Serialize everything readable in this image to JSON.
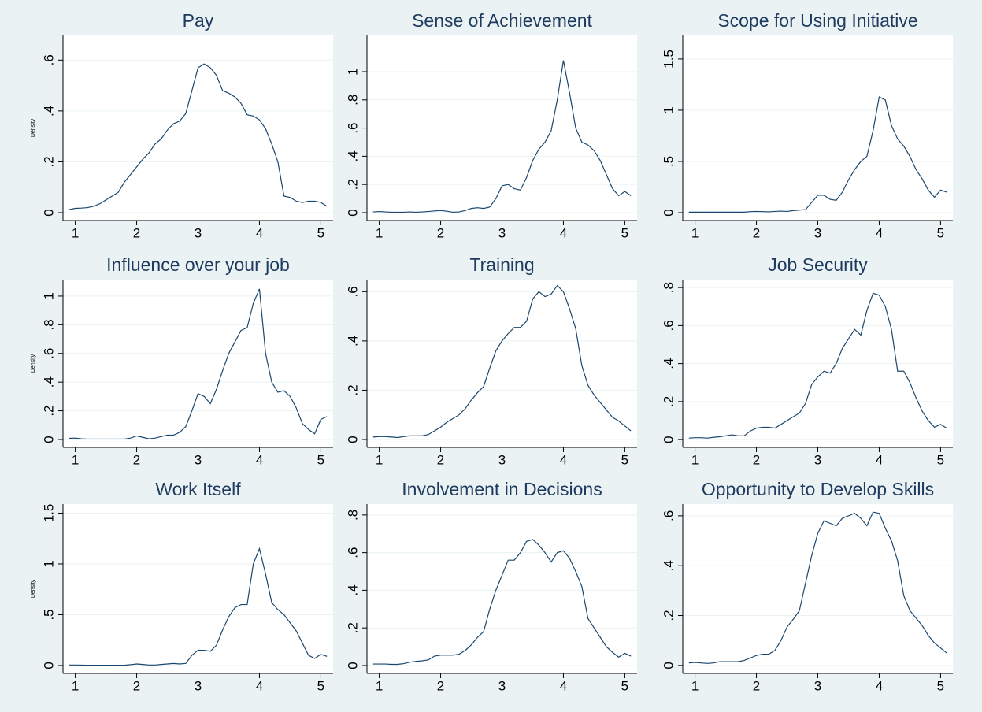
{
  "chart_data": [
    {
      "type": "line",
      "title": "Pay",
      "ytitle": "Density",
      "color": "#1a476f",
      "grid": true,
      "x": [
        0.9,
        1,
        1.1,
        1.2,
        1.3,
        1.4,
        1.5,
        1.6,
        1.7,
        1.8,
        1.9,
        2,
        2.1,
        2.2,
        2.3,
        2.4,
        2.5,
        2.6,
        2.7,
        2.8,
        2.9,
        3,
        3.1,
        3.2,
        3.3,
        3.4,
        3.5,
        3.6,
        3.7,
        3.8,
        3.9,
        4,
        4.1,
        4.2,
        4.3,
        4.4,
        4.5,
        4.6,
        4.7,
        4.8,
        4.9,
        5,
        5.1
      ],
      "values": [
        0.012,
        0.017,
        0.018,
        0.02,
        0.025,
        0.035,
        0.05,
        0.065,
        0.08,
        0.12,
        0.15,
        0.18,
        0.21,
        0.235,
        0.27,
        0.29,
        0.325,
        0.35,
        0.36,
        0.39,
        0.48,
        0.57,
        0.585,
        0.57,
        0.54,
        0.48,
        0.47,
        0.455,
        0.43,
        0.385,
        0.38,
        0.365,
        0.33,
        0.27,
        0.2,
        0.065,
        0.06,
        0.045,
        0.04,
        0.045,
        0.045,
        0.04,
        0.025
      ],
      "xlim": [
        0.8,
        5.2
      ],
      "xticks": [
        1,
        2,
        3,
        4,
        5
      ],
      "ylim": [
        -0.031,
        0.697
      ],
      "yticks": [
        0,
        {
          "value": 0.2,
          "label": ".2"
        },
        {
          "value": 0.4,
          "label": ".4"
        },
        {
          "value": 0.6,
          "label": ".6"
        }
      ]
    },
    {
      "type": "line",
      "title": "Sense of Achievement",
      "color": "#1a476f",
      "grid": true,
      "x": [
        0.9,
        1,
        1.1,
        1.2,
        1.3,
        1.4,
        1.5,
        1.6,
        1.7,
        1.8,
        1.9,
        2,
        2.1,
        2.2,
        2.3,
        2.4,
        2.5,
        2.6,
        2.7,
        2.8,
        2.9,
        3,
        3.1,
        3.2,
        3.3,
        3.4,
        3.5,
        3.6,
        3.7,
        3.8,
        3.9,
        4,
        4.1,
        4.2,
        4.3,
        4.4,
        4.5,
        4.6,
        4.7,
        4.8,
        4.9,
        5,
        5.1
      ],
      "values": [
        0.005,
        0.008,
        0.005,
        0.003,
        0.003,
        0.003,
        0.005,
        0.003,
        0.005,
        0.008,
        0.012,
        0.015,
        0.01,
        0.003,
        0.005,
        0.015,
        0.03,
        0.035,
        0.03,
        0.04,
        0.1,
        0.19,
        0.2,
        0.17,
        0.16,
        0.25,
        0.37,
        0.45,
        0.5,
        0.58,
        0.8,
        1.08,
        0.85,
        0.6,
        0.5,
        0.48,
        0.44,
        0.37,
        0.27,
        0.17,
        0.12,
        0.15,
        0.12
      ],
      "xlim": [
        0.8,
        5.2
      ],
      "xticks": [
        1,
        2,
        3,
        4,
        5
      ],
      "ylim": [
        -0.056,
        1.257
      ],
      "yticks": [
        0,
        {
          "value": 0.2,
          "label": ".2"
        },
        {
          "value": 0.4,
          "label": ".4"
        },
        {
          "value": 0.6,
          "label": ".6"
        },
        {
          "value": 0.8,
          "label": ".8"
        },
        1
      ]
    },
    {
      "type": "line",
      "title": "Scope for Using Initiative",
      "color": "#1a476f",
      "grid": true,
      "x": [
        0.9,
        1,
        1.1,
        1.2,
        1.3,
        1.4,
        1.5,
        1.6,
        1.7,
        1.8,
        1.9,
        2,
        2.1,
        2.2,
        2.3,
        2.4,
        2.5,
        2.6,
        2.7,
        2.8,
        2.9,
        3,
        3.1,
        3.2,
        3.3,
        3.4,
        3.5,
        3.6,
        3.7,
        3.8,
        3.9,
        4,
        4.1,
        4.2,
        4.3,
        4.4,
        4.5,
        4.6,
        4.7,
        4.8,
        4.9,
        5,
        5.1
      ],
      "values": [
        0.005,
        0.005,
        0.005,
        0.005,
        0.005,
        0.005,
        0.005,
        0.005,
        0.005,
        0.005,
        0.01,
        0.012,
        0.01,
        0.008,
        0.012,
        0.015,
        0.012,
        0.02,
        0.025,
        0.03,
        0.1,
        0.17,
        0.17,
        0.13,
        0.12,
        0.2,
        0.32,
        0.42,
        0.5,
        0.55,
        0.8,
        1.13,
        1.1,
        0.85,
        0.72,
        0.65,
        0.55,
        0.42,
        0.33,
        0.22,
        0.15,
        0.22,
        0.2
      ],
      "xlim": [
        0.8,
        5.2
      ],
      "xticks": [
        1,
        2,
        3,
        4,
        5
      ],
      "ylim": [
        -0.077,
        1.73
      ],
      "yticks": [
        0,
        {
          "value": 0.5,
          "label": ".5"
        },
        1,
        1.5
      ]
    },
    {
      "type": "line",
      "title": "Influence over your job",
      "ytitle": "Density",
      "color": "#1a476f",
      "grid": true,
      "x": [
        0.9,
        1,
        1.1,
        1.2,
        1.3,
        1.4,
        1.5,
        1.6,
        1.7,
        1.8,
        1.9,
        2,
        2.1,
        2.2,
        2.3,
        2.4,
        2.5,
        2.6,
        2.7,
        2.8,
        2.9,
        3,
        3.1,
        3.2,
        3.3,
        3.4,
        3.5,
        3.6,
        3.7,
        3.8,
        3.9,
        4,
        4.1,
        4.2,
        4.3,
        4.4,
        4.5,
        4.6,
        4.7,
        4.8,
        4.9,
        5,
        5.1
      ],
      "values": [
        0.008,
        0.01,
        0.005,
        0.003,
        0.003,
        0.003,
        0.003,
        0.003,
        0.003,
        0.003,
        0.01,
        0.025,
        0.015,
        0.005,
        0.01,
        0.02,
        0.03,
        0.03,
        0.05,
        0.09,
        0.2,
        0.32,
        0.3,
        0.25,
        0.35,
        0.48,
        0.6,
        0.68,
        0.76,
        0.78,
        0.95,
        1.05,
        0.6,
        0.4,
        0.33,
        0.34,
        0.3,
        0.22,
        0.11,
        0.07,
        0.04,
        0.14,
        0.16
      ],
      "xlim": [
        0.8,
        5.2
      ],
      "xticks": [
        1,
        2,
        3,
        4,
        5
      ],
      "ylim": [
        -0.055,
        1.115
      ],
      "yticks": [
        0,
        {
          "value": 0.2,
          "label": ".2"
        },
        {
          "value": 0.4,
          "label": ".4"
        },
        {
          "value": 0.6,
          "label": ".6"
        },
        {
          "value": 0.8,
          "label": ".8"
        },
        1
      ]
    },
    {
      "type": "line",
      "title": "Training",
      "color": "#1a476f",
      "grid": true,
      "x": [
        0.9,
        1,
        1.1,
        1.2,
        1.3,
        1.4,
        1.5,
        1.6,
        1.7,
        1.8,
        1.9,
        2,
        2.1,
        2.2,
        2.3,
        2.4,
        2.5,
        2.6,
        2.7,
        2.8,
        2.9,
        3,
        3.1,
        3.2,
        3.3,
        3.4,
        3.5,
        3.6,
        3.7,
        3.8,
        3.9,
        4,
        4.1,
        4.2,
        4.3,
        4.4,
        4.5,
        4.6,
        4.7,
        4.8,
        4.9,
        5,
        5.1
      ],
      "values": [
        0.01,
        0.012,
        0.012,
        0.01,
        0.008,
        0.012,
        0.015,
        0.015,
        0.015,
        0.02,
        0.035,
        0.05,
        0.07,
        0.085,
        0.1,
        0.125,
        0.16,
        0.19,
        0.215,
        0.29,
        0.36,
        0.4,
        0.43,
        0.455,
        0.455,
        0.48,
        0.57,
        0.6,
        0.58,
        0.59,
        0.625,
        0.6,
        0.53,
        0.45,
        0.3,
        0.22,
        0.18,
        0.15,
        0.12,
        0.09,
        0.075,
        0.055,
        0.035
      ],
      "xlim": [
        0.8,
        5.2
      ],
      "xticks": [
        1,
        2,
        3,
        4,
        5
      ],
      "ylim": [
        -0.032,
        0.649
      ],
      "yticks": [
        0,
        {
          "value": 0.2,
          "label": ".2"
        },
        {
          "value": 0.4,
          "label": ".4"
        },
        {
          "value": 0.6,
          "label": ".6"
        }
      ]
    },
    {
      "type": "line",
      "title": "Job Security",
      "color": "#1a476f",
      "grid": true,
      "x": [
        0.9,
        1,
        1.1,
        1.2,
        1.3,
        1.4,
        1.5,
        1.6,
        1.7,
        1.8,
        1.9,
        2,
        2.1,
        2.2,
        2.3,
        2.4,
        2.5,
        2.6,
        2.7,
        2.8,
        2.9,
        3,
        3.1,
        3.2,
        3.3,
        3.4,
        3.5,
        3.6,
        3.7,
        3.8,
        3.9,
        4,
        4.1,
        4.2,
        4.3,
        4.4,
        4.5,
        4.6,
        4.7,
        4.8,
        4.9,
        5,
        5.1
      ],
      "values": [
        0.008,
        0.01,
        0.01,
        0.008,
        0.012,
        0.015,
        0.02,
        0.025,
        0.02,
        0.02,
        0.045,
        0.06,
        0.065,
        0.065,
        0.06,
        0.08,
        0.1,
        0.12,
        0.14,
        0.19,
        0.29,
        0.33,
        0.36,
        0.35,
        0.4,
        0.48,
        0.53,
        0.58,
        0.55,
        0.68,
        0.77,
        0.76,
        0.7,
        0.58,
        0.36,
        0.36,
        0.3,
        0.22,
        0.15,
        0.1,
        0.065,
        0.08,
        0.06
      ],
      "xlim": [
        0.8,
        5.2
      ],
      "xticks": [
        1,
        2,
        3,
        4,
        5
      ],
      "ylim": [
        -0.041,
        0.842
      ],
      "yticks": [
        0,
        {
          "value": 0.2,
          "label": ".2"
        },
        {
          "value": 0.4,
          "label": ".4"
        },
        {
          "value": 0.6,
          "label": ".6"
        },
        {
          "value": 0.8,
          "label": ".8"
        }
      ]
    },
    {
      "type": "line",
      "title": "Work Itself",
      "ytitle": "Density",
      "color": "#1a476f",
      "grid": true,
      "x": [
        0.9,
        1,
        1.1,
        1.2,
        1.3,
        1.4,
        1.5,
        1.6,
        1.7,
        1.8,
        1.9,
        2,
        2.1,
        2.2,
        2.3,
        2.4,
        2.5,
        2.6,
        2.7,
        2.8,
        2.9,
        3,
        3.1,
        3.2,
        3.3,
        3.4,
        3.5,
        3.6,
        3.7,
        3.8,
        3.9,
        4,
        4.1,
        4.2,
        4.3,
        4.4,
        4.5,
        4.6,
        4.7,
        4.8,
        4.9,
        5,
        5.1
      ],
      "values": [
        0.005,
        0.005,
        0.004,
        0.003,
        0.003,
        0.003,
        0.003,
        0.003,
        0.003,
        0.003,
        0.008,
        0.015,
        0.01,
        0.005,
        0.005,
        0.01,
        0.015,
        0.02,
        0.015,
        0.02,
        0.1,
        0.15,
        0.15,
        0.14,
        0.2,
        0.35,
        0.48,
        0.57,
        0.6,
        0.6,
        1.0,
        1.15,
        0.9,
        0.62,
        0.55,
        0.5,
        0.42,
        0.34,
        0.22,
        0.1,
        0.07,
        0.11,
        0.09
      ],
      "xlim": [
        0.8,
        5.2
      ],
      "xticks": [
        1,
        2,
        3,
        4,
        5
      ],
      "ylim": [
        -0.078,
        1.589
      ],
      "yticks": [
        0,
        {
          "value": 0.5,
          "label": ".5"
        },
        1,
        1.5
      ]
    },
    {
      "type": "line",
      "title": "Involvement in Decisions",
      "color": "#1a476f",
      "grid": true,
      "x": [
        0.9,
        1,
        1.1,
        1.2,
        1.3,
        1.4,
        1.5,
        1.6,
        1.7,
        1.8,
        1.9,
        2,
        2.1,
        2.2,
        2.3,
        2.4,
        2.5,
        2.6,
        2.7,
        2.8,
        2.9,
        3,
        3.1,
        3.2,
        3.3,
        3.4,
        3.5,
        3.6,
        3.7,
        3.8,
        3.9,
        4,
        4.1,
        4.2,
        4.3,
        4.4,
        4.5,
        4.6,
        4.7,
        4.8,
        4.9,
        5,
        5.1
      ],
      "values": [
        0.008,
        0.008,
        0.008,
        0.006,
        0.006,
        0.01,
        0.018,
        0.022,
        0.025,
        0.03,
        0.05,
        0.055,
        0.055,
        0.055,
        0.06,
        0.08,
        0.11,
        0.15,
        0.18,
        0.3,
        0.4,
        0.48,
        0.56,
        0.56,
        0.6,
        0.66,
        0.67,
        0.64,
        0.6,
        0.55,
        0.6,
        0.61,
        0.57,
        0.5,
        0.42,
        0.25,
        0.2,
        0.15,
        0.1,
        0.07,
        0.045,
        0.065,
        0.05
      ],
      "xlim": [
        0.8,
        5.2
      ],
      "xticks": [
        1,
        2,
        3,
        4,
        5
      ],
      "ylim": [
        -0.042,
        0.858
      ],
      "yticks": [
        0,
        {
          "value": 0.2,
          "label": ".2"
        },
        {
          "value": 0.4,
          "label": ".4"
        },
        {
          "value": 0.6,
          "label": ".6"
        },
        {
          "value": 0.8,
          "label": ".8"
        }
      ]
    },
    {
      "type": "line",
      "title": "Opportunity to Develop Skills",
      "color": "#1a476f",
      "grid": true,
      "x": [
        0.9,
        1,
        1.1,
        1.2,
        1.3,
        1.4,
        1.5,
        1.6,
        1.7,
        1.8,
        1.9,
        2,
        2.1,
        2.2,
        2.3,
        2.4,
        2.5,
        2.6,
        2.7,
        2.8,
        2.9,
        3,
        3.1,
        3.2,
        3.3,
        3.4,
        3.5,
        3.6,
        3.7,
        3.8,
        3.9,
        4,
        4.1,
        4.2,
        4.3,
        4.4,
        4.5,
        4.6,
        4.7,
        4.8,
        4.9,
        5,
        5.1
      ],
      "values": [
        0.01,
        0.012,
        0.01,
        0.008,
        0.01,
        0.015,
        0.015,
        0.015,
        0.015,
        0.02,
        0.03,
        0.04,
        0.045,
        0.045,
        0.06,
        0.1,
        0.155,
        0.185,
        0.22,
        0.33,
        0.44,
        0.53,
        0.58,
        0.57,
        0.56,
        0.59,
        0.6,
        0.61,
        0.59,
        0.56,
        0.615,
        0.61,
        0.55,
        0.5,
        0.42,
        0.28,
        0.22,
        0.19,
        0.16,
        0.12,
        0.09,
        0.07,
        0.05
      ],
      "xlim": [
        0.8,
        5.2
      ],
      "xticks": [
        1,
        2,
        3,
        4,
        5
      ],
      "ylim": [
        -0.032,
        0.647
      ],
      "yticks": [
        0,
        {
          "value": 0.2,
          "label": ".2"
        },
        {
          "value": 0.4,
          "label": ".4"
        },
        {
          "value": 0.6,
          "label": ".6"
        }
      ]
    }
  ]
}
